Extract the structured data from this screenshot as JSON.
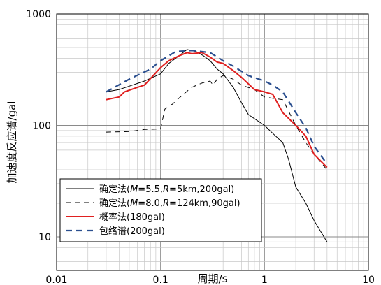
{
  "chart_data": {
    "type": "line",
    "x_scale": "log",
    "y_scale": "log",
    "xlabel": "周期/s",
    "ylabel": "加速度反应谱/gal",
    "xlim": [
      0.01,
      10
    ],
    "ylim": [
      5,
      1000
    ],
    "grid": true,
    "legend_position": "bottom-left",
    "x_ticks": [
      {
        "value": 0.01,
        "label": "0.01"
      },
      {
        "value": 0.1,
        "label": "0.1"
      },
      {
        "value": 1,
        "label": "1"
      },
      {
        "value": 10,
        "label": "10"
      }
    ],
    "y_ticks": [
      {
        "value": 10,
        "label": "10"
      },
      {
        "value": 100,
        "label": "100"
      },
      {
        "value": 1000,
        "label": "1000"
      }
    ],
    "series": [
      {
        "name": "确定法(M=5.5,R=5km,200gal)",
        "legend_parts": [
          {
            "text": "确定法(",
            "italic": false
          },
          {
            "text": "M",
            "italic": true
          },
          {
            "text": "=5.5,",
            "italic": false
          },
          {
            "text": "R",
            "italic": true
          },
          {
            "text": "=5km,200gal)",
            "italic": false
          }
        ],
        "color": "#000000",
        "style": "solid",
        "points": [
          [
            0.03,
            200
          ],
          [
            0.04,
            210
          ],
          [
            0.05,
            225
          ],
          [
            0.07,
            250
          ],
          [
            0.1,
            290
          ],
          [
            0.12,
            360
          ],
          [
            0.15,
            420
          ],
          [
            0.18,
            480
          ],
          [
            0.22,
            460
          ],
          [
            0.26,
            420
          ],
          [
            0.3,
            380
          ],
          [
            0.35,
            320
          ],
          [
            0.4,
            290
          ],
          [
            0.5,
            220
          ],
          [
            0.6,
            160
          ],
          [
            0.7,
            125
          ],
          [
            0.8,
            115
          ],
          [
            1.0,
            100
          ],
          [
            1.2,
            85
          ],
          [
            1.5,
            70
          ],
          [
            1.7,
            50
          ],
          [
            2.0,
            28
          ],
          [
            2.5,
            20
          ],
          [
            3.0,
            14
          ],
          [
            4.0,
            9
          ]
        ]
      },
      {
        "name": "确定法(M=8.0,R=124km,90gal)",
        "legend_parts": [
          {
            "text": "确定法(",
            "italic": false
          },
          {
            "text": "M",
            "italic": true
          },
          {
            "text": "=8.0,",
            "italic": false
          },
          {
            "text": "R",
            "italic": true
          },
          {
            "text": "=124km,90gal)",
            "italic": false
          }
        ],
        "color": "#000000",
        "style": "dashed",
        "points": [
          [
            0.03,
            87
          ],
          [
            0.05,
            88
          ],
          [
            0.07,
            92
          ],
          [
            0.1,
            93
          ],
          [
            0.11,
            140
          ],
          [
            0.13,
            155
          ],
          [
            0.16,
            185
          ],
          [
            0.2,
            220
          ],
          [
            0.25,
            240
          ],
          [
            0.3,
            250
          ],
          [
            0.32,
            230
          ],
          [
            0.35,
            260
          ],
          [
            0.4,
            280
          ],
          [
            0.5,
            260
          ],
          [
            0.6,
            230
          ],
          [
            0.8,
            210
          ],
          [
            1.0,
            180
          ],
          [
            1.2,
            175
          ],
          [
            1.5,
            170
          ],
          [
            2.0,
            100
          ],
          [
            2.5,
            70
          ],
          [
            3.0,
            55
          ],
          [
            4.0,
            40
          ]
        ]
      },
      {
        "name": "概率法(180gal)",
        "legend_parts": [
          {
            "text": "概率法(180gal)",
            "italic": false
          }
        ],
        "color": "#e02020",
        "style": "solid",
        "points": [
          [
            0.03,
            170
          ],
          [
            0.04,
            180
          ],
          [
            0.045,
            200
          ],
          [
            0.06,
            220
          ],
          [
            0.07,
            230
          ],
          [
            0.1,
            330
          ],
          [
            0.12,
            380
          ],
          [
            0.15,
            420
          ],
          [
            0.18,
            450
          ],
          [
            0.2,
            440
          ],
          [
            0.25,
            450
          ],
          [
            0.3,
            410
          ],
          [
            0.35,
            370
          ],
          [
            0.4,
            360
          ],
          [
            0.5,
            310
          ],
          [
            0.6,
            270
          ],
          [
            0.8,
            210
          ],
          [
            1.0,
            200
          ],
          [
            1.2,
            190
          ],
          [
            1.5,
            130
          ],
          [
            2.0,
            100
          ],
          [
            2.5,
            80
          ],
          [
            3.0,
            55
          ],
          [
            4.0,
            42
          ]
        ]
      },
      {
        "name": "包络谱(200gal)",
        "legend_parts": [
          {
            "text": "包络谱(200gal)",
            "italic": false
          }
        ],
        "color": "#2b4f8f",
        "style": "dashed",
        "points": [
          [
            0.03,
            200
          ],
          [
            0.05,
            260
          ],
          [
            0.08,
            320
          ],
          [
            0.1,
            380
          ],
          [
            0.14,
            460
          ],
          [
            0.2,
            470
          ],
          [
            0.3,
            450
          ],
          [
            0.4,
            380
          ],
          [
            0.5,
            340
          ],
          [
            0.7,
            280
          ],
          [
            1.0,
            250
          ],
          [
            1.2,
            230
          ],
          [
            1.5,
            200
          ],
          [
            2.0,
            130
          ],
          [
            2.5,
            95
          ],
          [
            3.0,
            65
          ],
          [
            4.0,
            45
          ]
        ]
      }
    ]
  }
}
